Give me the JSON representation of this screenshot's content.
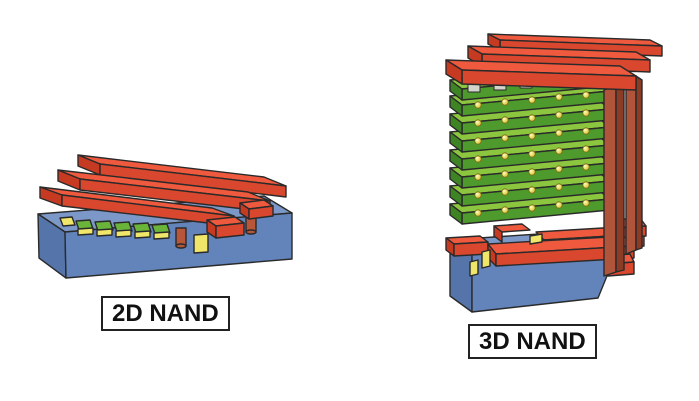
{
  "figure": {
    "labels": {
      "left": "2D NAND",
      "right": "3D NAND"
    },
    "colors": {
      "substrate_top": "#6f8fc4",
      "substrate_side": "#5474a8",
      "wordline_top": "#e8553a",
      "wordline_side": "#c63a22",
      "cell_layer_top": "#8cc63f",
      "cell_layer_side": "#4e9a2c",
      "channel": "#f2e96a",
      "pillar": "#b0553c",
      "contact": "#d4d4cc"
    },
    "structures": {
      "planar_stack_layers": 1,
      "vertical_stack_layers": 8
    }
  }
}
